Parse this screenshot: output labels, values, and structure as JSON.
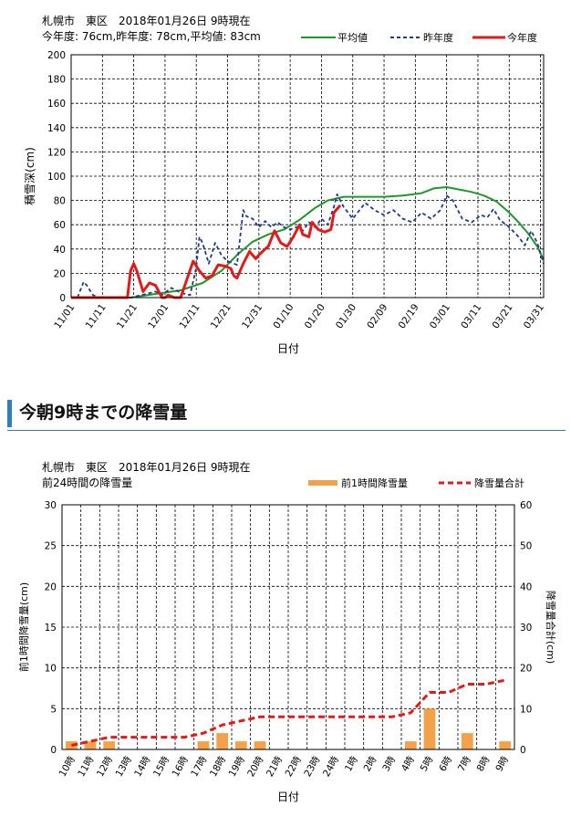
{
  "snow_depth": {
    "header_line1": "札幌市　東区　2018年01月26日 9時現在",
    "header_line2": "今年度: 76cm,昨年度: 78cm,平均値: 83cm",
    "chart_data": {
      "type": "line",
      "xlabel": "日付",
      "ylabel": "積雪深(cm)",
      "ylim": [
        0,
        200
      ],
      "yticks": [
        0,
        20,
        40,
        60,
        80,
        100,
        120,
        140,
        160,
        180,
        200
      ],
      "xlim": [
        "2017-11-01",
        "2018-04-01"
      ],
      "x_tick_labels": [
        "11/01",
        "11/11",
        "11/21",
        "12/01",
        "12/11",
        "12/21",
        "12/31",
        "01/10",
        "01/20",
        "01/30",
        "02/09",
        "02/19",
        "03/01",
        "03/11",
        "03/21",
        "03/31"
      ],
      "legend_position": "top-right",
      "grid": true,
      "series": [
        {
          "name": "平均値",
          "color": "#22962e",
          "style": "solid",
          "points": [
            [
              "2017-11-01",
              0
            ],
            [
              "2017-11-20",
              0
            ],
            [
              "2017-11-28",
              3
            ],
            [
              "2017-12-06",
              6
            ],
            [
              "2017-12-13",
              12
            ],
            [
              "2017-12-19",
              22
            ],
            [
              "2017-12-24",
              35
            ],
            [
              "2017-12-29",
              46
            ],
            [
              "2018-01-03",
              52
            ],
            [
              "2018-01-08",
              56
            ],
            [
              "2018-01-13",
              64
            ],
            [
              "2018-01-18",
              74
            ],
            [
              "2018-01-22",
              80
            ],
            [
              "2018-01-27",
              83
            ],
            [
              "2018-02-03",
              83
            ],
            [
              "2018-02-09",
              83
            ],
            [
              "2018-02-15",
              84
            ],
            [
              "2018-02-21",
              86
            ],
            [
              "2018-02-25",
              90
            ],
            [
              "2018-03-01",
              91
            ],
            [
              "2018-03-05",
              89
            ],
            [
              "2018-03-09",
              87
            ],
            [
              "2018-03-13",
              84
            ],
            [
              "2018-03-17",
              79
            ],
            [
              "2018-03-21",
              70
            ],
            [
              "2018-03-24",
              62
            ],
            [
              "2018-03-27",
              53
            ],
            [
              "2018-03-30",
              42
            ],
            [
              "2018-04-01",
              31
            ]
          ]
        },
        {
          "name": "昨年度",
          "color": "#1f3b8c",
          "style": "dashed",
          "points": [
            [
              "2017-11-01",
              0
            ],
            [
              "2017-11-03",
              0
            ],
            [
              "2017-11-05",
              13
            ],
            [
              "2017-11-06",
              10
            ],
            [
              "2017-11-08",
              2
            ],
            [
              "2017-11-10",
              0
            ],
            [
              "2017-11-15",
              0
            ],
            [
              "2017-11-20",
              0
            ],
            [
              "2017-11-25",
              3
            ],
            [
              "2017-11-28",
              5
            ],
            [
              "2017-11-30",
              2
            ],
            [
              "2017-12-03",
              8
            ],
            [
              "2017-12-06",
              4
            ],
            [
              "2017-12-09",
              2
            ],
            [
              "2017-12-11",
              25
            ],
            [
              "2017-12-12",
              50
            ],
            [
              "2017-12-13",
              45
            ],
            [
              "2017-12-15",
              28
            ],
            [
              "2017-12-17",
              45
            ],
            [
              "2017-12-19",
              35
            ],
            [
              "2017-12-21",
              30
            ],
            [
              "2017-12-24",
              27
            ],
            [
              "2017-12-26",
              72
            ],
            [
              "2017-12-27",
              67
            ],
            [
              "2017-12-29",
              65
            ],
            [
              "2017-12-31",
              58
            ],
            [
              "2018-01-02",
              63
            ],
            [
              "2018-01-04",
              58
            ],
            [
              "2018-01-06",
              62
            ],
            [
              "2018-01-08",
              58
            ],
            [
              "2018-01-10",
              56
            ],
            [
              "2018-01-12",
              58
            ],
            [
              "2018-01-14",
              55
            ],
            [
              "2018-01-16",
              62
            ],
            [
              "2018-01-18",
              58
            ],
            [
              "2018-01-20",
              65
            ],
            [
              "2018-01-22",
              60
            ],
            [
              "2018-01-24",
              75
            ],
            [
              "2018-01-25",
              85
            ],
            [
              "2018-01-27",
              75
            ],
            [
              "2018-01-30",
              65
            ],
            [
              "2018-02-03",
              78
            ],
            [
              "2018-02-06",
              72
            ],
            [
              "2018-02-09",
              68
            ],
            [
              "2018-02-12",
              72
            ],
            [
              "2018-02-15",
              65
            ],
            [
              "2018-02-18",
              62
            ],
            [
              "2018-02-21",
              70
            ],
            [
              "2018-02-24",
              65
            ],
            [
              "2018-02-27",
              72
            ],
            [
              "2018-03-01",
              84
            ],
            [
              "2018-03-03",
              80
            ],
            [
              "2018-03-06",
              65
            ],
            [
              "2018-03-09",
              62
            ],
            [
              "2018-03-12",
              68
            ],
            [
              "2018-03-14",
              66
            ],
            [
              "2018-03-16",
              73
            ],
            [
              "2018-03-18",
              64
            ],
            [
              "2018-03-21",
              58
            ],
            [
              "2018-03-24",
              50
            ],
            [
              "2018-03-26",
              43
            ],
            [
              "2018-03-28",
              55
            ],
            [
              "2018-03-30",
              45
            ],
            [
              "2018-04-01",
              28
            ]
          ]
        },
        {
          "name": "今年度",
          "color": "#e31a1a",
          "style": "solid",
          "points": [
            [
              "2017-11-01",
              0
            ],
            [
              "2017-11-19",
              0
            ],
            [
              "2017-11-20",
              22
            ],
            [
              "2017-11-21",
              28
            ],
            [
              "2017-11-22",
              22
            ],
            [
              "2017-11-24",
              5
            ],
            [
              "2017-11-26",
              12
            ],
            [
              "2017-11-28",
              10
            ],
            [
              "2017-11-29",
              5
            ],
            [
              "2017-11-30",
              0
            ],
            [
              "2017-12-01",
              0
            ],
            [
              "2017-12-02",
              2
            ],
            [
              "2017-12-04",
              0
            ],
            [
              "2017-12-06",
              0
            ],
            [
              "2017-12-08",
              15
            ],
            [
              "2017-12-10",
              30
            ],
            [
              "2017-12-12",
              22
            ],
            [
              "2017-12-14",
              16
            ],
            [
              "2017-12-16",
              18
            ],
            [
              "2017-12-18",
              27
            ],
            [
              "2017-12-20",
              26
            ],
            [
              "2017-12-22",
              24
            ],
            [
              "2017-12-23",
              18
            ],
            [
              "2017-12-24",
              16
            ],
            [
              "2017-12-26",
              28
            ],
            [
              "2017-12-28",
              38
            ],
            [
              "2017-12-30",
              32
            ],
            [
              "2017-12-31",
              35
            ],
            [
              "2018-01-02",
              40
            ],
            [
              "2018-01-03",
              42
            ],
            [
              "2018-01-05",
              55
            ],
            [
              "2018-01-07",
              45
            ],
            [
              "2018-01-09",
              42
            ],
            [
              "2018-01-11",
              50
            ],
            [
              "2018-01-13",
              60
            ],
            [
              "2018-01-14",
              52
            ],
            [
              "2018-01-16",
              50
            ],
            [
              "2018-01-17",
              62
            ],
            [
              "2018-01-19",
              56
            ],
            [
              "2018-01-21",
              54
            ],
            [
              "2018-01-23",
              56
            ],
            [
              "2018-01-24",
              70
            ],
            [
              "2018-01-26",
              76
            ]
          ]
        }
      ]
    }
  },
  "section_heading": "今朝9時までの降雪量",
  "snowfall": {
    "header_line1": "札幌市　東区　2018年01月26日 9時現在",
    "header_line2": "前24時間の降雪量",
    "chart_data": {
      "type": "bar",
      "xlabel": "日付",
      "ylabel": "前1時間降雪量(cm)",
      "ylabel_right": "降雪量合計(cm)",
      "ylim": [
        0,
        30
      ],
      "yticks": [
        0,
        5,
        10,
        15,
        20,
        25,
        30
      ],
      "ylim_right": [
        0,
        60
      ],
      "yticks_right": [
        0,
        10,
        20,
        30,
        40,
        50,
        60
      ],
      "categories": [
        "10時",
        "11時",
        "12時",
        "13時",
        "14時",
        "15時",
        "16時",
        "17時",
        "18時",
        "19時",
        "20時",
        "21時",
        "22時",
        "23時",
        "24時",
        "1時",
        "2時",
        "3時",
        "4時",
        "5時",
        "6時",
        "7時",
        "8時",
        "9時"
      ],
      "legend_position": "top-right",
      "grid": true,
      "series": [
        {
          "name": "前1時間降雪量",
          "axis": "left",
          "type": "bar",
          "color": "#f4a14b",
          "values": [
            1,
            1,
            1,
            0,
            0,
            0,
            0,
            1,
            2,
            1,
            1,
            0,
            0,
            0,
            0,
            0,
            0,
            0,
            1,
            5,
            0,
            2,
            0,
            1
          ]
        },
        {
          "name": "降雪量合計",
          "axis": "right",
          "type": "line",
          "color": "#e31a1a",
          "style": "dashed",
          "values": [
            1,
            2,
            3,
            3,
            3,
            3,
            3,
            4,
            6,
            7,
            8,
            8,
            8,
            8,
            8,
            8,
            8,
            8,
            9,
            14,
            14,
            16,
            16,
            17
          ]
        }
      ]
    }
  }
}
